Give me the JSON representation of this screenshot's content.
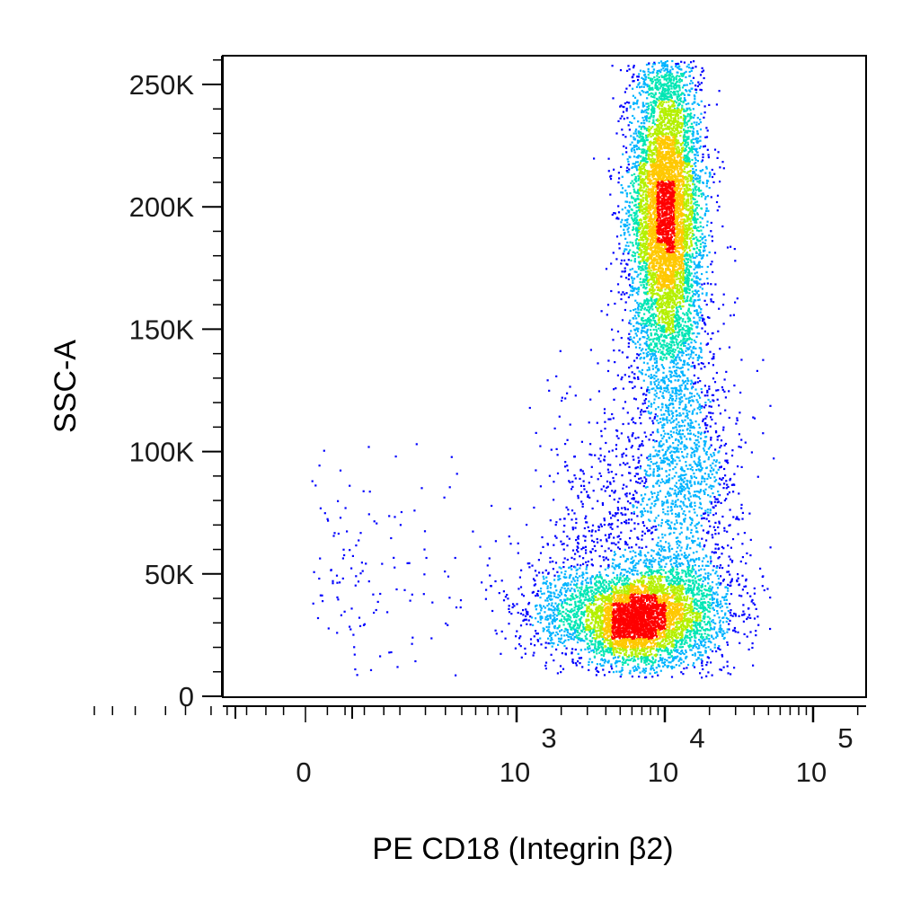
{
  "chart_data": {
    "type": "scatter",
    "style": "flow cytometry density dot plot",
    "xlabel": "PE CD18 (Integrin β2)",
    "ylabel": "SSC-A",
    "x_scale": "biexponential (logicle)",
    "y_scale": "linear",
    "ylim": [
      0,
      262144
    ],
    "y_ticks": [
      {
        "value": 0,
        "label": "0"
      },
      {
        "value": 50000,
        "label": "50K"
      },
      {
        "value": 100000,
        "label": "100K"
      },
      {
        "value": 150000,
        "label": "150K"
      },
      {
        "value": 200000,
        "label": "200K"
      },
      {
        "value": 250000,
        "label": "250K"
      }
    ],
    "x_ticks": [
      {
        "value": 0,
        "label": "0",
        "exponent": ""
      },
      {
        "value": 1000,
        "label": "10",
        "exponent": "3"
      },
      {
        "value": 10000,
        "label": "10",
        "exponent": "4"
      },
      {
        "value": 100000,
        "label": "10",
        "exponent": "5"
      }
    ],
    "density_colors": [
      "#0000ff",
      "#00b4ff",
      "#00e6b4",
      "#b4f000",
      "#ffc800",
      "#ff0000"
    ],
    "populations": [
      {
        "name": "",
        "x_center": 10000,
        "y_center": 205000,
        "x_spread_decades": 0.12,
        "y_spread": 32000,
        "count": 5200
      },
      {
        "name": "",
        "x_center": 10500,
        "y_center": 165000,
        "x_spread_decades": 0.14,
        "y_spread": 26000,
        "count": 1400
      },
      {
        "name": "",
        "x_center": 14000,
        "y_center": 95000,
        "x_spread_decades": 0.18,
        "y_spread": 22000,
        "count": 1000
      },
      {
        "name": "",
        "x_center": 6000,
        "y_center": 30000,
        "x_spread_decades": 0.14,
        "y_spread": 8000,
        "count": 1900
      },
      {
        "name": "",
        "x_center": 11000,
        "y_center": 36000,
        "x_spread_decades": 0.22,
        "y_spread": 12000,
        "count": 2200
      },
      {
        "name": "",
        "x_center": 2600,
        "y_center": 34000,
        "x_spread_decades": 0.22,
        "y_spread": 11000,
        "count": 1000
      },
      {
        "name": "",
        "x_center": 5000,
        "y_center": 70000,
        "x_spread_decades": 0.3,
        "y_spread": 28000,
        "count": 700
      },
      {
        "name": "",
        "x_center": 120,
        "y_center": 45000,
        "x_spread_decades": 0.5,
        "y_spread": 25000,
        "count": 140
      }
    ]
  }
}
